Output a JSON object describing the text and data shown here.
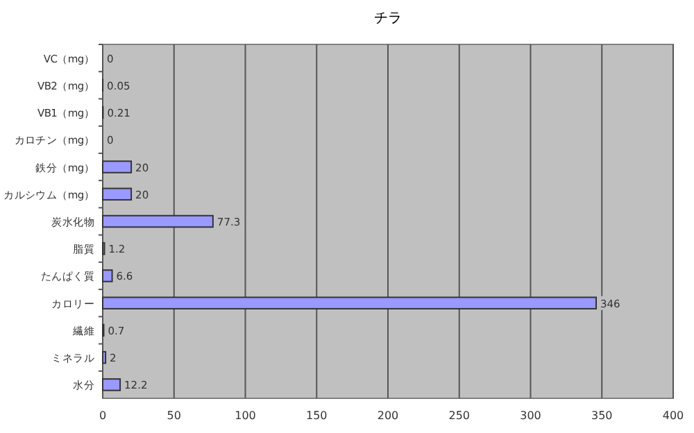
{
  "chart_data": {
    "type": "bar",
    "orientation": "horizontal",
    "title": "チラ",
    "categories": [
      "VC（mg）",
      "VB2（mg）",
      "VB1（mg）",
      "カロチン（mg）",
      "鉄分（mg）",
      "カルシウム（mg）",
      "炭水化物",
      "脂質",
      "たんぱく質",
      "カロリー",
      "繊維",
      "ミネラル",
      "水分"
    ],
    "values": [
      0,
      0.05,
      0.21,
      0,
      20,
      20,
      77.3,
      1.2,
      6.6,
      346,
      0.7,
      2,
      12.2
    ],
    "color": "#9999ff",
    "xlim": [
      0,
      400
    ],
    "xticks": [
      0,
      50,
      100,
      150,
      200,
      250,
      300,
      350,
      400
    ],
    "grid": "x",
    "data_labels": true
  }
}
